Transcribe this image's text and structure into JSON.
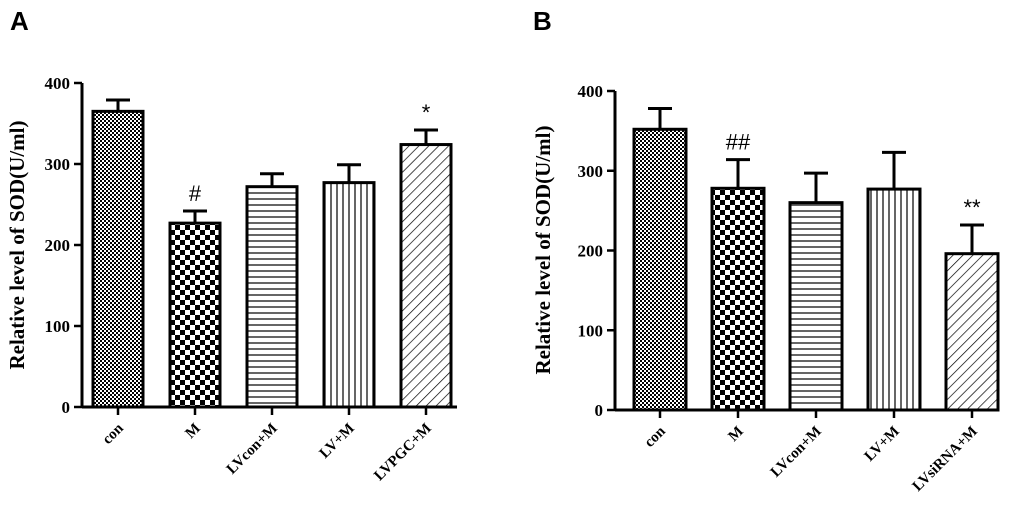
{
  "chart_data": [
    {
      "type": "bar",
      "panel": "A",
      "title": "",
      "xlabel": "",
      "ylabel": "Relative level of SOD(U/ml)",
      "ylim": [
        0,
        400
      ],
      "yticks": [
        "0",
        "100",
        "200",
        "300",
        "400"
      ],
      "categories": [
        "con",
        "M",
        "LVcon+M",
        "LV+M",
        "LVPGC+M"
      ],
      "values": [
        365,
        227,
        272,
        277,
        324
      ],
      "errors": [
        14,
        15,
        16,
        22,
        18
      ],
      "patterns": [
        "dense-check",
        "checker",
        "horizontal",
        "vertical",
        "diagonal"
      ],
      "annotations": [
        "",
        "#",
        "",
        "",
        "*"
      ]
    },
    {
      "type": "bar",
      "panel": "B",
      "title": "",
      "xlabel": "",
      "ylabel": "Relative level of SOD(U/ml)",
      "ylim": [
        0,
        400
      ],
      "yticks": [
        "0",
        "100",
        "200",
        "300",
        "400"
      ],
      "categories": [
        "con",
        "M",
        "LVcon+M",
        "LV+M",
        "LVsiRNA+M"
      ],
      "values": [
        352,
        278,
        260,
        277,
        196
      ],
      "errors": [
        26,
        36,
        37,
        46,
        36
      ],
      "patterns": [
        "dense-check",
        "checker",
        "horizontal",
        "vertical",
        "diagonal"
      ],
      "annotations": [
        "",
        "##",
        "",
        "",
        "**"
      ]
    }
  ]
}
